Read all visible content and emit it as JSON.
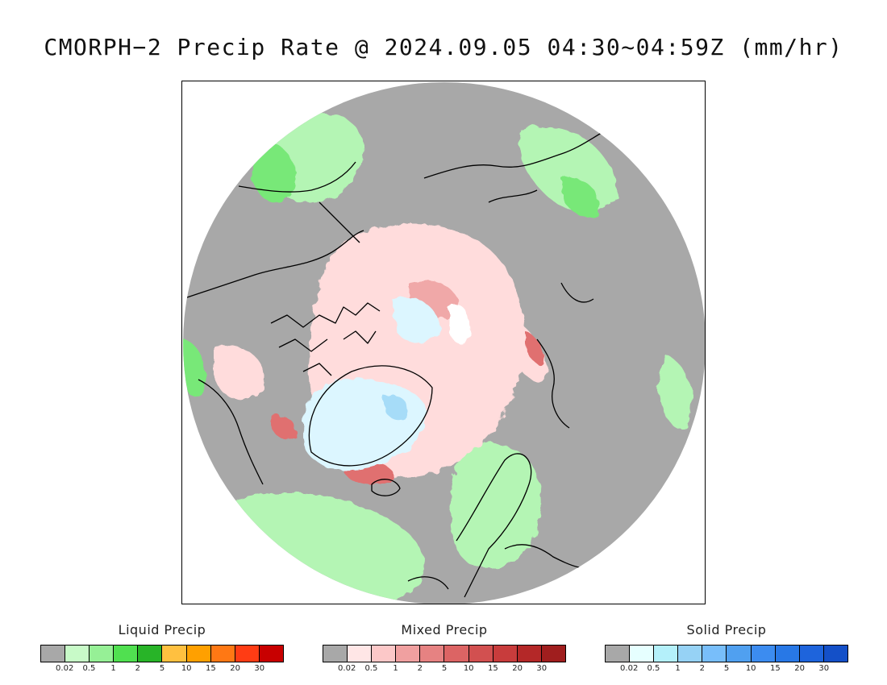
{
  "title": "CMORPH−2 Precip Rate @ 2024.09.05 04:30~04:59Z (mm/hr)",
  "map": {
    "ocean_color": "#a8a8a8",
    "coast_color": "#000000",
    "regions": [
      {
        "name": "light-liquid",
        "color": "#b4f5b4"
      },
      {
        "name": "moderate-liquid",
        "color": "#78e878"
      },
      {
        "name": "heavy-liquid",
        "color": "#3cc83c"
      },
      {
        "name": "light-mixed",
        "color": "#ffdcdc"
      },
      {
        "name": "moderate-mixed",
        "color": "#f0a8a8"
      },
      {
        "name": "heavy-mixed",
        "color": "#e07070"
      },
      {
        "name": "light-solid",
        "color": "#dcf6ff"
      },
      {
        "name": "moderate-solid",
        "color": "#a6dcf8"
      }
    ]
  },
  "legends": [
    {
      "title": "Liquid Precip",
      "colors": [
        "#a8a8a8",
        "#c8fac8",
        "#96f096",
        "#50e050",
        "#28b428",
        "#ffc040",
        "#ffa000",
        "#ff7814",
        "#ff3c14",
        "#c80000"
      ],
      "ticks": [
        "0.02",
        "0.5",
        "1",
        "2",
        "5",
        "10",
        "15",
        "20",
        "30"
      ]
    },
    {
      "title": "Mixed Precip",
      "colors": [
        "#a8a8a8",
        "#ffe6e6",
        "#fcc8c8",
        "#f0a0a0",
        "#e68282",
        "#dc6464",
        "#d25050",
        "#c83c3c",
        "#b42828",
        "#a01e1e"
      ],
      "ticks": [
        "0.02",
        "0.5",
        "1",
        "2",
        "5",
        "10",
        "15",
        "20",
        "30"
      ]
    },
    {
      "title": "Solid Precip",
      "colors": [
        "#a8a8a8",
        "#e6ffff",
        "#b4f0fa",
        "#96d2f5",
        "#78befa",
        "#50a0f0",
        "#3c8cf0",
        "#2878e6",
        "#1e64dc",
        "#1450c8"
      ],
      "ticks": [
        "0.02",
        "0.5",
        "1",
        "2",
        "5",
        "10",
        "15",
        "20",
        "30"
      ]
    }
  ]
}
